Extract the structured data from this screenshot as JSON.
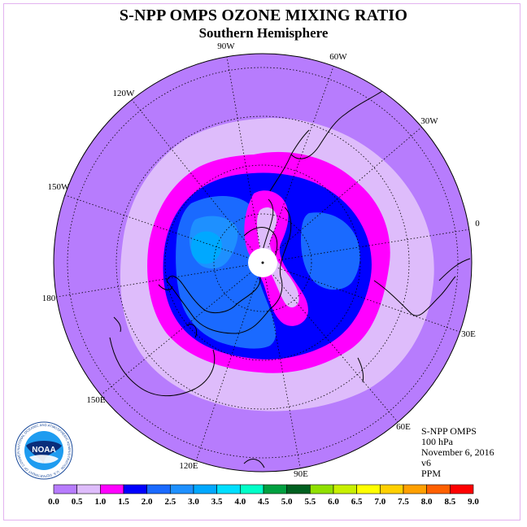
{
  "header": {
    "title": "S-NPP OMPS OZONE MIXING RATIO",
    "subtitle": "Southern Hemisphere"
  },
  "map": {
    "projection": "south-polar-stereographic",
    "longitude_labels": [
      "90W",
      "60W",
      "30W",
      "0",
      "30E",
      "60E",
      "90E",
      "120E",
      "150E",
      "180",
      "150W",
      "120W"
    ],
    "data_gap": "white circle at pole (no data)"
  },
  "info": {
    "instrument": "S-NPP OMPS",
    "level": "100 hPa",
    "date": "November 6, 2016",
    "version": "v6",
    "units": "PPM"
  },
  "colorbar": {
    "ticks": [
      "0.0",
      "0.5",
      "1.0",
      "1.5",
      "2.0",
      "2.5",
      "3.0",
      "3.5",
      "4.0",
      "4.5",
      "5.0",
      "5.5",
      "6.0",
      "6.5",
      "7.0",
      "7.5",
      "8.0",
      "8.5",
      "9.0"
    ],
    "colors": [
      "#b77cfd",
      "#debcfb",
      "#ff00ff",
      "#0000ff",
      "#1a6aff",
      "#1e90ff",
      "#00a8ff",
      "#00dfff",
      "#00ffc8",
      "#00a040",
      "#006020",
      "#90e000",
      "#c8f000",
      "#ffff00",
      "#ffd000",
      "#ffa000",
      "#ff6000",
      "#ff0000",
      "#8b4a2a"
    ]
  },
  "logo": {
    "text": "NOAA",
    "ring_text": "NATIONAL OCEANIC AND ATMOSPHERIC ADMINISTRATION · U.S. DEPARTMENT OF COMMERCE"
  }
}
